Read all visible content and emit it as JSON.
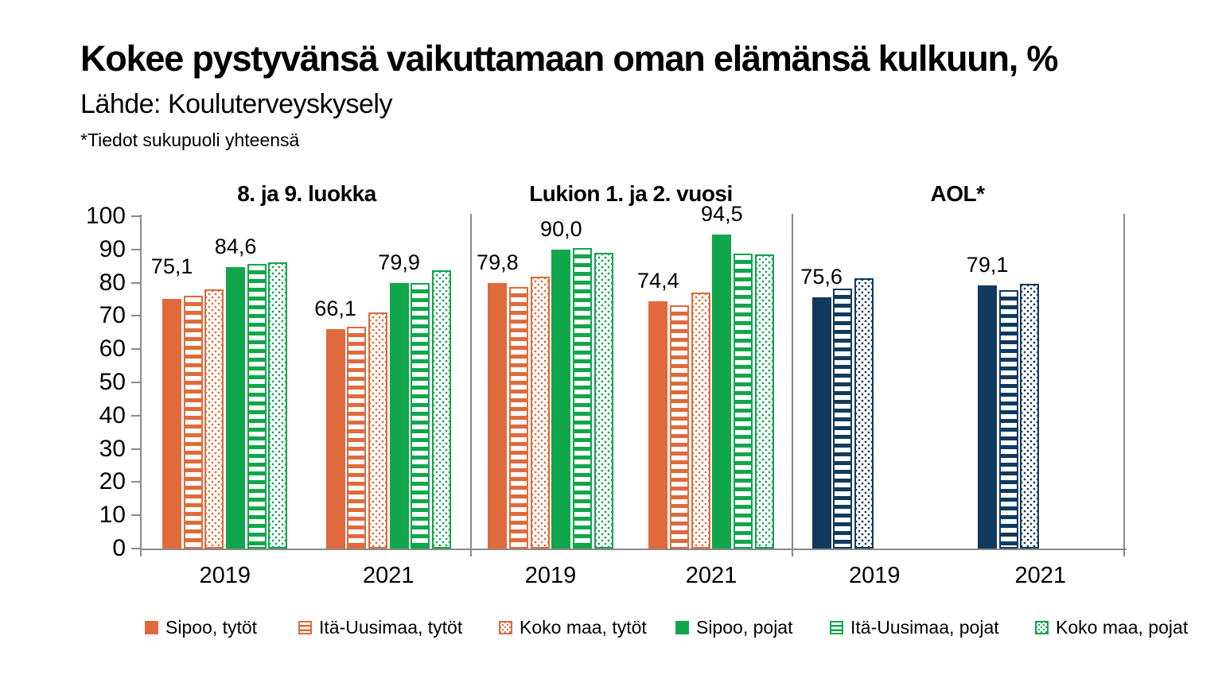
{
  "title": "Kokee pystyvänsä vaikuttamaan oman elämänsä kulkuun, %",
  "source": "Lähde: Kouluterveyskysely",
  "note": "*Tiedot sukupuoli yhteensä",
  "chart_data": {
    "type": "bar",
    "ylim": [
      0,
      100
    ],
    "y_ticks": [
      0,
      10,
      20,
      30,
      40,
      50,
      60,
      70,
      80,
      90,
      100
    ],
    "grid": false,
    "legend_position": "bottom",
    "series": [
      {
        "name": "Sipoo, tytöt",
        "color": "#E06A3B",
        "pattern": "solid"
      },
      {
        "name": "Itä-Uusimaa, tytöt",
        "color": "#E06A3B",
        "pattern": "stripes"
      },
      {
        "name": "Koko maa, tytöt",
        "color": "#E06A3B",
        "pattern": "dots"
      },
      {
        "name": "Sipoo, pojat",
        "color": "#10A64C",
        "pattern": "solid"
      },
      {
        "name": "Itä-Uusimaa, pojat",
        "color": "#10A64C",
        "pattern": "stripes"
      },
      {
        "name": "Koko maa, pojat",
        "color": "#10A64C",
        "pattern": "dots"
      }
    ],
    "panels": [
      {
        "title": "8. ja 9. luokka",
        "groups": [
          {
            "year": "2019",
            "values": [
              75.1,
              76.0,
              77.9,
              84.6,
              85.6,
              86.1
            ],
            "labeled": [
              {
                "index": 0,
                "text": "75,1",
                "lift": 15
              },
              {
                "index": 3,
                "text": "84,6",
                "lift": 0
              }
            ]
          },
          {
            "year": "2021",
            "values": [
              66.1,
              66.8,
              71.1,
              79.9,
              80.0,
              83.7
            ],
            "labeled": [
              {
                "index": 0,
                "text": "66,1",
                "lift": 0
              },
              {
                "index": 3,
                "text": "79,9",
                "lift": 0
              }
            ]
          }
        ]
      },
      {
        "title": "Lukion 1. ja 2. vuosi",
        "groups": [
          {
            "year": "2019",
            "values": [
              79.8,
              78.8,
              81.8,
              90.0,
              90.4,
              89.0
            ],
            "labeled": [
              {
                "index": 0,
                "text": "79,8",
                "lift": 0
              },
              {
                "index": 3,
                "text": "90,0",
                "lift": 0
              }
            ]
          },
          {
            "year": "2021",
            "values": [
              74.4,
              73.1,
              77.0,
              94.5,
              88.7,
              88.5
            ],
            "labeled": [
              {
                "index": 0,
                "text": "74,4",
                "lift": 0
              },
              {
                "index": 3,
                "text": "94,5",
                "lift": 0
              }
            ]
          }
        ]
      },
      {
        "title": "AOL*",
        "series": [
          {
            "name": "Sipoo",
            "color": "#123A5E",
            "pattern": "solid"
          },
          {
            "name": "Itä-Uusimaa",
            "color": "#123A5E",
            "pattern": "stripes"
          },
          {
            "name": "Koko maa",
            "color": "#123A5E",
            "pattern": "dots"
          }
        ],
        "groups": [
          {
            "year": "2019",
            "values": [
              75.6,
              78.3,
              81.3
            ],
            "labeled": [
              {
                "index": 0,
                "text": "75,6",
                "lift": 0
              }
            ]
          },
          {
            "year": "2021",
            "values": [
              79.1,
              77.7,
              79.7
            ],
            "labeled": [
              {
                "index": 0,
                "text": "79,1",
                "lift": 0
              }
            ]
          }
        ]
      }
    ]
  }
}
